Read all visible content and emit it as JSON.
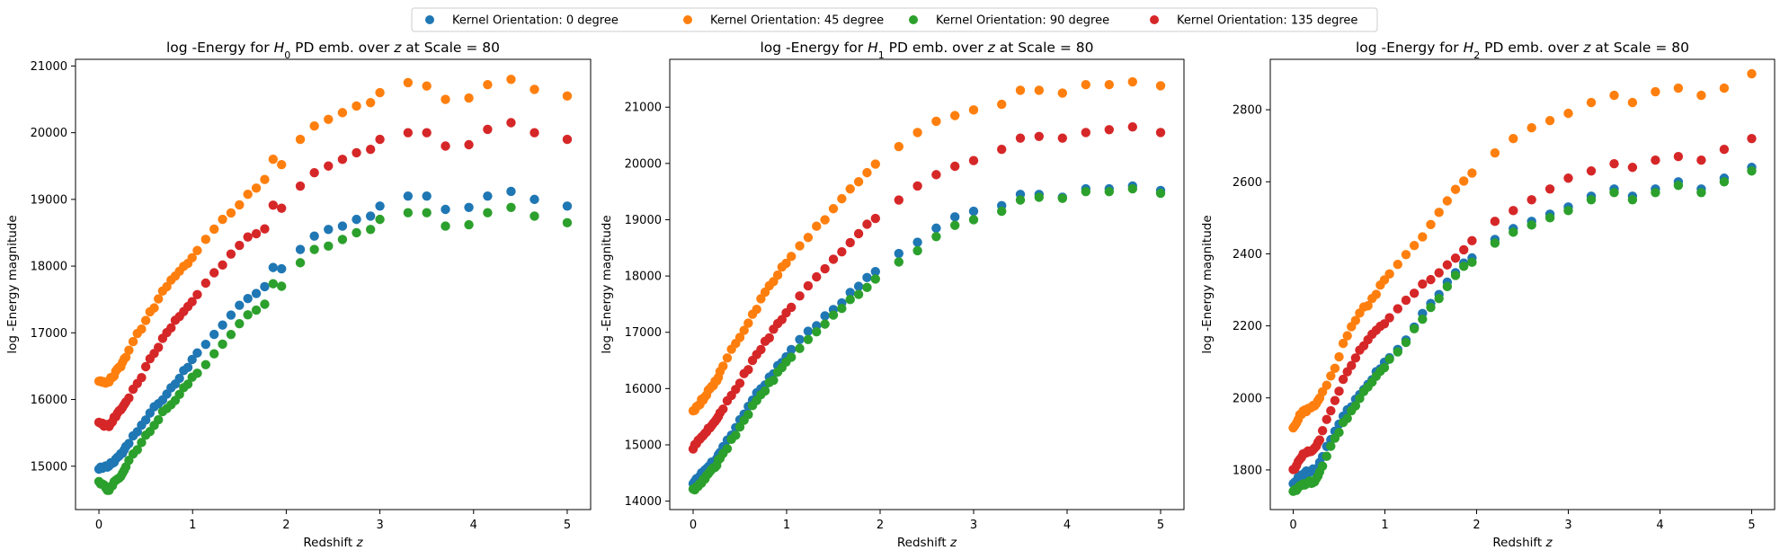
{
  "legend": {
    "entries": [
      {
        "label": "Kernel Orientation: 0 degree",
        "color": "#1f77b4"
      },
      {
        "label": "Kernel Orientation: 45 degree",
        "color": "#ff7f0e"
      },
      {
        "label": "Kernel Orientation: 90 degree",
        "color": "#2ca02c"
      },
      {
        "label": "Kernel Orientation: 135 degree",
        "color": "#d62728"
      }
    ],
    "placement": "top-center"
  },
  "chart_data": [
    {
      "type": "scatter",
      "title_pre": "log -Energy for ",
      "title_sym": "H",
      "title_sub": "0",
      "title_post": " PD emb. over ",
      "title_var": "z",
      "title_end": " at Scale = 80",
      "xlabel": "Redshift",
      "xlabel_var": "z",
      "ylabel": "log -Energy magnitude",
      "xlim": [
        -0.25,
        5.25
      ],
      "ylim": [
        14350,
        21100
      ],
      "xticks": [
        "0",
        "1",
        "2",
        "3",
        "4",
        "5"
      ],
      "yticks": [
        "15000",
        "16000",
        "17000",
        "18000",
        "19000",
        "20000",
        "21000"
      ],
      "anchors_z": [
        0,
        0.1,
        0.25,
        0.4,
        0.55,
        0.7,
        0.85,
        1.0,
        1.15,
        1.3,
        1.45,
        1.6,
        1.75,
        1.85,
        2.0,
        2.15,
        2.3,
        2.45,
        2.6,
        2.75,
        2.9,
        3.0,
        3.3,
        3.5,
        3.7,
        3.95,
        4.15,
        4.4,
        4.65,
        5.0
      ],
      "series": [
        {
          "name": "Kernel Orientation: 0 degree",
          "color": "#1f77b4",
          "values": [
            14950,
            15000,
            15200,
            15500,
            15800,
            16050,
            16300,
            16600,
            16850,
            17100,
            17350,
            17550,
            17600,
            18000,
            17950,
            18250,
            18450,
            18550,
            18600,
            18700,
            18750,
            18900,
            19050,
            19050,
            18850,
            18880,
            19050,
            19120,
            19000,
            18900
          ]
        },
        {
          "name": "Kernel Orientation: 45 degree",
          "color": "#ff7f0e",
          "values": [
            16300,
            16250,
            16550,
            16950,
            17300,
            17650,
            17900,
            18150,
            18400,
            18650,
            18850,
            19100,
            19200,
            19600,
            19500,
            19900,
            20100,
            20200,
            20300,
            20400,
            20450,
            20600,
            20750,
            20700,
            20500,
            20520,
            20720,
            20800,
            20650,
            20550
          ]
        },
        {
          "name": "Kernel Orientation: 90 degree",
          "color": "#2ca02c",
          "values": [
            14750,
            14650,
            14900,
            15250,
            15550,
            15850,
            16050,
            16350,
            16550,
            16800,
            17050,
            17300,
            17350,
            17750,
            17700,
            18050,
            18250,
            18300,
            18400,
            18500,
            18550,
            18700,
            18800,
            18800,
            18600,
            18620,
            18800,
            18880,
            18750,
            18650
          ]
        },
        {
          "name": "Kernel Orientation: 135 degree",
          "color": "#d62728",
          "values": [
            15650,
            15600,
            15900,
            16200,
            16600,
            16950,
            17250,
            17500,
            17750,
            18000,
            18250,
            18450,
            18500,
            18900,
            18850,
            19200,
            19400,
            19500,
            19600,
            19700,
            19750,
            19900,
            20000,
            20000,
            19800,
            19820,
            20050,
            20150,
            20000,
            19900
          ]
        }
      ]
    },
    {
      "type": "scatter",
      "title_pre": "log -Energy for ",
      "title_sym": "H",
      "title_sub": "1",
      "title_post": " PD emb. over ",
      "title_var": "z",
      "title_end": " at Scale = 80",
      "xlabel": "Redshift",
      "xlabel_var": "z",
      "ylabel": "log -Energy magnitude",
      "xlim": [
        -0.25,
        5.25
      ],
      "ylim": [
        13850,
        21850
      ],
      "xticks": [
        "0",
        "1",
        "2",
        "3",
        "4",
        "5"
      ],
      "yticks": [
        "14000",
        "15000",
        "16000",
        "17000",
        "18000",
        "19000",
        "20000",
        "21000"
      ],
      "anchors_z": [
        0,
        0.1,
        0.25,
        0.4,
        0.55,
        0.7,
        0.85,
        1.0,
        1.2,
        1.4,
        1.6,
        1.8,
        2.0,
        2.2,
        2.4,
        2.6,
        2.8,
        3.0,
        3.3,
        3.5,
        3.7,
        3.95,
        4.2,
        4.45,
        4.7,
        5.0
      ],
      "series": [
        {
          "name": "Kernel Orientation: 0 degree",
          "color": "#1f77b4",
          "values": [
            14300,
            14500,
            14750,
            15150,
            15550,
            15950,
            16250,
            16600,
            16950,
            17250,
            17550,
            17900,
            18150,
            18400,
            18600,
            18850,
            19050,
            19150,
            19250,
            19450,
            19450,
            19400,
            19550,
            19550,
            19600,
            19520
          ]
        },
        {
          "name": "Kernel Orientation: 45 degree",
          "color": "#ff7f0e",
          "values": [
            15600,
            15800,
            16150,
            16650,
            17050,
            17500,
            17900,
            18250,
            18650,
            19000,
            19400,
            19750,
            20050,
            20300,
            20550,
            20750,
            20850,
            20950,
            21050,
            21300,
            21300,
            21250,
            21400,
            21400,
            21450,
            21380
          ]
        },
        {
          "name": "Kernel Orientation: 90 degree",
          "color": "#2ca02c",
          "values": [
            14200,
            14350,
            14650,
            15050,
            15450,
            15850,
            16150,
            16500,
            16850,
            17150,
            17450,
            17750,
            18000,
            18250,
            18450,
            18700,
            18900,
            19000,
            19150,
            19350,
            19400,
            19380,
            19500,
            19500,
            19550,
            19470
          ]
        },
        {
          "name": "Kernel Orientation: 135 degree",
          "color": "#d62728",
          "values": [
            14950,
            15150,
            15450,
            15850,
            16250,
            16650,
            17000,
            17350,
            17750,
            18100,
            18450,
            18800,
            19100,
            19350,
            19600,
            19800,
            19950,
            20050,
            20250,
            20450,
            20480,
            20450,
            20550,
            20600,
            20650,
            20550
          ]
        }
      ]
    },
    {
      "type": "scatter",
      "title_pre": "log -Energy for ",
      "title_sym": "H",
      "title_sub": "2",
      "title_post": " PD emb. over ",
      "title_var": "z",
      "title_end": " at Scale = 80",
      "xlabel": "Redshift",
      "xlabel_var": "z",
      "ylabel": "log -Energy magnitude",
      "xlim": [
        -0.25,
        5.25
      ],
      "ylim": [
        1690,
        2940
      ],
      "xticks": [
        "0",
        "1",
        "2",
        "3",
        "4",
        "5"
      ],
      "yticks": [
        "1800",
        "2000",
        "2200",
        "2400",
        "2600",
        "2800"
      ],
      "anchors_z": [
        0,
        0.1,
        0.25,
        0.4,
        0.55,
        0.7,
        0.85,
        1.0,
        1.2,
        1.4,
        1.6,
        1.8,
        2.0,
        2.2,
        2.4,
        2.6,
        2.8,
        3.0,
        3.25,
        3.5,
        3.7,
        3.95,
        4.2,
        4.45,
        4.7,
        5.0
      ],
      "series": [
        {
          "name": "Kernel Orientation: 0 degree",
          "color": "#1f77b4",
          "values": [
            1760,
            1790,
            1800,
            1880,
            1950,
            2000,
            2050,
            2100,
            2150,
            2230,
            2290,
            2360,
            2400,
            2440,
            2470,
            2490,
            2510,
            2530,
            2560,
            2580,
            2560,
            2580,
            2600,
            2580,
            2610,
            2640
          ]
        },
        {
          "name": "Kernel Orientation: 45 degree",
          "color": "#ff7f0e",
          "values": [
            1920,
            1960,
            1980,
            2050,
            2150,
            2230,
            2270,
            2330,
            2390,
            2440,
            2520,
            2590,
            2640,
            2680,
            2720,
            2750,
            2770,
            2790,
            2820,
            2840,
            2820,
            2850,
            2860,
            2840,
            2860,
            2900
          ]
        },
        {
          "name": "Kernel Orientation: 90 degree",
          "color": "#2ca02c",
          "values": [
            1740,
            1760,
            1770,
            1860,
            1930,
            1990,
            2040,
            2090,
            2140,
            2220,
            2280,
            2350,
            2390,
            2430,
            2460,
            2480,
            2500,
            2520,
            2550,
            2570,
            2550,
            2570,
            2590,
            2570,
            2600,
            2630
          ]
        },
        {
          "name": "Kernel Orientation: 135 degree",
          "color": "#d62728",
          "values": [
            1800,
            1840,
            1860,
            1960,
            2050,
            2120,
            2170,
            2210,
            2260,
            2310,
            2350,
            2400,
            2450,
            2490,
            2520,
            2550,
            2580,
            2610,
            2630,
            2650,
            2640,
            2660,
            2670,
            2660,
            2690,
            2720
          ]
        }
      ]
    }
  ]
}
